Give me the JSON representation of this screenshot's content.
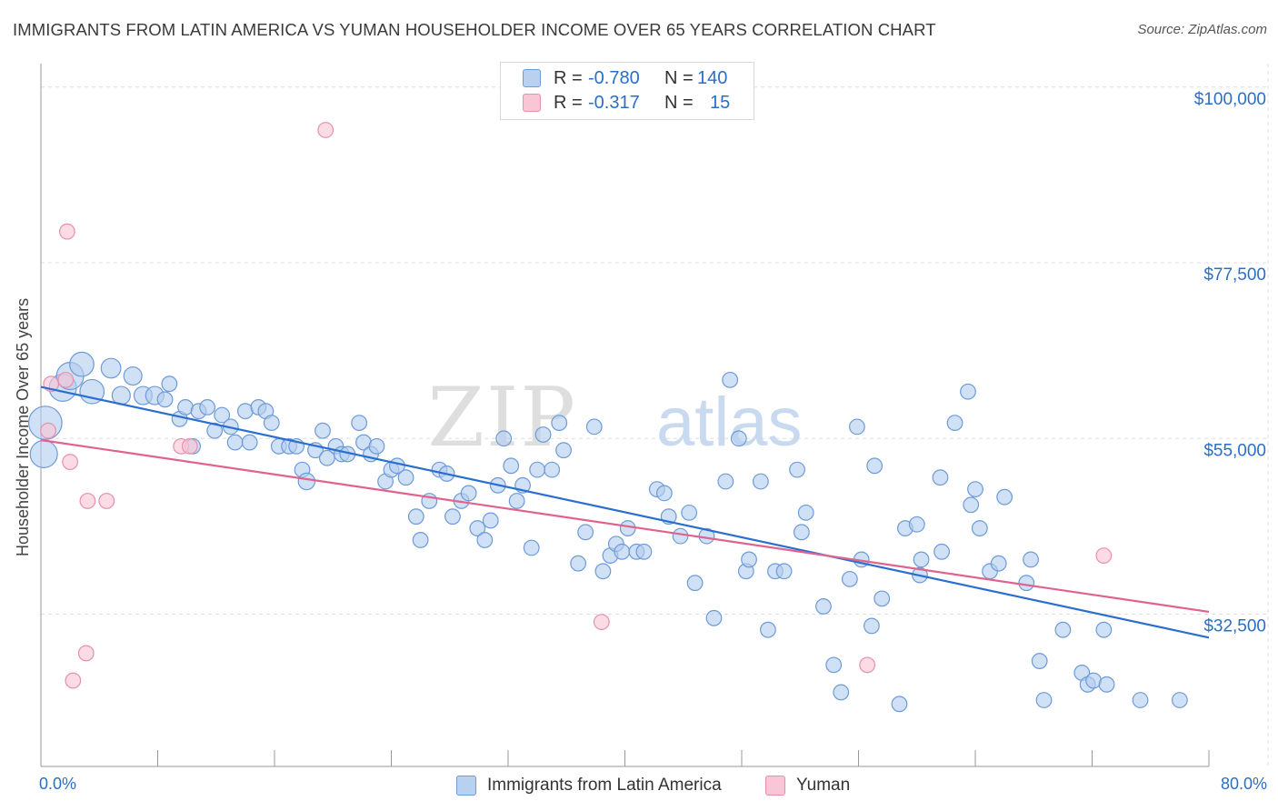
{
  "title": "IMMIGRANTS FROM LATIN AMERICA VS YUMAN HOUSEHOLDER INCOME OVER 65 YEARS CORRELATION CHART",
  "source": "Source: ZipAtlas.com",
  "watermark": {
    "zip": "ZIP",
    "atlas": "atlas"
  },
  "legend": {
    "rows": [
      {
        "r_label": "R =",
        "r_value": "-0.780",
        "n_label": "N =",
        "n_value": "140",
        "color": "#a9c8f2",
        "border": "#5b8fd6"
      },
      {
        "r_label": "R =",
        "r_value": "-0.317",
        "n_label": "N =",
        "n_value": "15",
        "color": "#f7b8cc",
        "border": "#e67fa2"
      }
    ]
  },
  "bottom_legend": {
    "series1": "Immigrants from Latin America",
    "series2": "Yuman"
  },
  "colors": {
    "blue_fill": "#b3cdef",
    "blue_stroke": "#6d9bd8",
    "blue_line": "#2a6fcf",
    "pink_fill": "#f8c6d4",
    "pink_stroke": "#e98fae",
    "pink_line": "#e0638e",
    "accent_text": "#2a6fc7",
    "grid": "#dddddd"
  },
  "chart_data": {
    "type": "scatter",
    "title": "IMMIGRANTS FROM LATIN AMERICA VS YUMAN HOUSEHOLDER INCOME OVER 65 YEARS CORRELATION CHART",
    "xlabel": "",
    "ylabel": "Householder Income Over 65 years",
    "xlim": [
      0,
      80
    ],
    "ylim": [
      13000,
      103000
    ],
    "x_tick_labels": [
      "0.0%",
      "80.0%"
    ],
    "y_ticks": [
      32500,
      55000,
      77500,
      100000
    ],
    "y_tick_labels": [
      "$32,500",
      "$55,000",
      "$77,500",
      "$100,000"
    ],
    "grid": true,
    "legend_position": "top-center",
    "series": [
      {
        "name": "Immigrants from Latin America",
        "R": -0.78,
        "N": 140,
        "trend": {
          "x": [
            0,
            80
          ],
          "y": [
            61600,
            29500
          ]
        },
        "points": [
          [
            0.3,
            57000,
            22
          ],
          [
            0.2,
            53000,
            18
          ],
          [
            1.5,
            61500,
            18
          ],
          [
            2.0,
            63000,
            18
          ],
          [
            2.8,
            64500,
            16
          ],
          [
            3.5,
            61000,
            16
          ],
          [
            4.8,
            64000,
            13
          ],
          [
            5.5,
            60500,
            12
          ],
          [
            6.3,
            63000,
            12
          ],
          [
            7.0,
            60500,
            12
          ],
          [
            7.8,
            60500,
            12
          ],
          [
            8.5,
            60000,
            10
          ],
          [
            8.8,
            62000,
            10
          ],
          [
            9.5,
            57500,
            10
          ],
          [
            9.9,
            59000,
            10
          ],
          [
            10.4,
            54000,
            10
          ],
          [
            10.8,
            58500,
            10
          ],
          [
            11.4,
            59000,
            10
          ],
          [
            11.9,
            56000,
            10
          ],
          [
            12.4,
            58000,
            10
          ],
          [
            13.0,
            56500,
            10
          ],
          [
            13.3,
            54500,
            10
          ],
          [
            14.0,
            58500,
            10
          ],
          [
            14.3,
            54500,
            10
          ],
          [
            14.9,
            59000,
            10
          ],
          [
            15.4,
            58500,
            10
          ],
          [
            15.8,
            57000,
            10
          ],
          [
            16.3,
            54000,
            10
          ],
          [
            17.0,
            54000,
            10
          ],
          [
            17.5,
            54000,
            10
          ],
          [
            17.9,
            51000,
            10
          ],
          [
            18.2,
            49500,
            11
          ],
          [
            18.8,
            53500,
            10
          ],
          [
            19.3,
            56000,
            10
          ],
          [
            19.6,
            52500,
            10
          ],
          [
            20.2,
            54000,
            10
          ],
          [
            20.6,
            53000,
            10
          ],
          [
            21.0,
            53000,
            10
          ],
          [
            21.8,
            57000,
            10
          ],
          [
            22.1,
            54500,
            10
          ],
          [
            22.6,
            53000,
            10
          ],
          [
            23.0,
            54000,
            10
          ],
          [
            23.6,
            49500,
            10
          ],
          [
            24.0,
            51000,
            10
          ],
          [
            24.4,
            51500,
            10
          ],
          [
            25.0,
            50000,
            10
          ],
          [
            25.7,
            45000,
            10
          ],
          [
            26.0,
            42000,
            10
          ],
          [
            26.6,
            47000,
            10
          ],
          [
            27.3,
            51000,
            10
          ],
          [
            27.8,
            50500,
            10
          ],
          [
            28.2,
            45000,
            10
          ],
          [
            28.8,
            47000,
            10
          ],
          [
            29.3,
            48000,
            10
          ],
          [
            29.9,
            43500,
            10
          ],
          [
            30.4,
            42000,
            10
          ],
          [
            30.8,
            44500,
            10
          ],
          [
            31.3,
            49000,
            10
          ],
          [
            31.7,
            55000,
            10
          ],
          [
            32.2,
            51500,
            10
          ],
          [
            32.6,
            47000,
            10
          ],
          [
            33.0,
            49000,
            10
          ],
          [
            33.6,
            41000,
            10
          ],
          [
            34.0,
            51000,
            10
          ],
          [
            34.4,
            55500,
            10
          ],
          [
            35.0,
            51000,
            10
          ],
          [
            35.5,
            57000,
            10
          ],
          [
            35.8,
            53500,
            10
          ],
          [
            36.8,
            39000,
            10
          ],
          [
            37.3,
            43000,
            10
          ],
          [
            37.9,
            56500,
            10
          ],
          [
            38.5,
            38000,
            10
          ],
          [
            39.0,
            40000,
            10
          ],
          [
            39.4,
            41500,
            10
          ],
          [
            39.8,
            40500,
            10
          ],
          [
            40.2,
            43500,
            10
          ],
          [
            40.8,
            40500,
            10
          ],
          [
            41.3,
            40500,
            10
          ],
          [
            42.2,
            48500,
            10
          ],
          [
            42.7,
            48000,
            10
          ],
          [
            43.0,
            45000,
            10
          ],
          [
            43.8,
            42500,
            10
          ],
          [
            44.4,
            45500,
            10
          ],
          [
            44.8,
            36500,
            10
          ],
          [
            45.6,
            42500,
            10
          ],
          [
            46.1,
            32000,
            10
          ],
          [
            46.9,
            49500,
            10
          ],
          [
            47.2,
            62500,
            10
          ],
          [
            47.8,
            55000,
            10
          ],
          [
            48.3,
            38000,
            10
          ],
          [
            48.5,
            39500,
            10
          ],
          [
            49.3,
            49500,
            10
          ],
          [
            49.8,
            30500,
            10
          ],
          [
            50.3,
            38000,
            10
          ],
          [
            50.9,
            38000,
            10
          ],
          [
            51.8,
            51000,
            10
          ],
          [
            52.1,
            43000,
            10
          ],
          [
            52.4,
            45500,
            10
          ],
          [
            53.6,
            33500,
            10
          ],
          [
            54.3,
            26000,
            10
          ],
          [
            54.8,
            22500,
            10
          ],
          [
            55.4,
            37000,
            10
          ],
          [
            55.9,
            56500,
            10
          ],
          [
            56.2,
            39500,
            10
          ],
          [
            56.9,
            31000,
            10
          ],
          [
            57.1,
            51500,
            10
          ],
          [
            57.6,
            34500,
            10
          ],
          [
            58.8,
            21000,
            10
          ],
          [
            59.2,
            43500,
            10
          ],
          [
            60.0,
            44000,
            10
          ],
          [
            60.3,
            39500,
            10
          ],
          [
            60.2,
            37500,
            10
          ],
          [
            61.7,
            40500,
            10
          ],
          [
            61.6,
            50000,
            10
          ],
          [
            62.6,
            57000,
            10
          ],
          [
            63.5,
            61000,
            10
          ],
          [
            63.7,
            46500,
            10
          ],
          [
            64.0,
            48500,
            10
          ],
          [
            64.3,
            43500,
            10
          ],
          [
            65.0,
            38000,
            10
          ],
          [
            65.6,
            39000,
            10
          ],
          [
            66.0,
            47500,
            10
          ],
          [
            67.5,
            36500,
            10
          ],
          [
            67.8,
            39500,
            10
          ],
          [
            68.4,
            26500,
            10
          ],
          [
            68.7,
            21500,
            10
          ],
          [
            70.0,
            30500,
            10
          ],
          [
            71.3,
            25000,
            10
          ],
          [
            71.7,
            23500,
            10
          ],
          [
            72.1,
            24000,
            10
          ],
          [
            72.8,
            30500,
            10
          ],
          [
            73.0,
            23500,
            10
          ],
          [
            75.3,
            21500,
            10
          ],
          [
            78.0,
            21500,
            10
          ]
        ]
      },
      {
        "name": "Yuman",
        "R": -0.317,
        "N": 15,
        "trend": {
          "x": [
            0,
            80
          ],
          "y": [
            54800,
            32800
          ]
        },
        "points": [
          [
            0.5,
            56000,
            10
          ],
          [
            0.7,
            62000,
            10
          ],
          [
            1.7,
            62500,
            10
          ],
          [
            1.8,
            81500,
            10
          ],
          [
            2.0,
            52000,
            10
          ],
          [
            2.2,
            24000,
            10
          ],
          [
            3.1,
            27500,
            10
          ],
          [
            3.2,
            47000,
            10
          ],
          [
            4.5,
            47000,
            10
          ],
          [
            9.6,
            54000,
            10
          ],
          [
            10.2,
            54000,
            10
          ],
          [
            19.5,
            94500,
            10
          ],
          [
            38.4,
            31500,
            10
          ],
          [
            56.6,
            26000,
            10
          ],
          [
            72.8,
            40000,
            10
          ]
        ]
      }
    ]
  }
}
